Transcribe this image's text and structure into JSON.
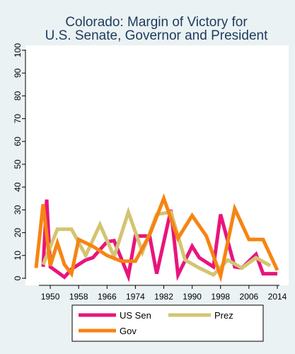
{
  "chart_data": {
    "type": "line",
    "title": "Colorado: Margin of Victory for",
    "subtitle": "U.S. Senate, Governor and President",
    "xlabel": "",
    "ylabel": "",
    "xlim": [
      1946,
      2014
    ],
    "ylim": [
      0,
      100
    ],
    "x_ticks": [
      1950,
      1958,
      1966,
      1974,
      1982,
      1990,
      1998,
      2006,
      2014
    ],
    "x_tick_labels": [
      "1950",
      "1958",
      "1966",
      "1974",
      "1982",
      "1990",
      "1998",
      "2006",
      "2014"
    ],
    "y_ticks": [
      0,
      10,
      20,
      30,
      40,
      50,
      60,
      70,
      80,
      90,
      100
    ],
    "y_tick_labels": [
      "0",
      "10",
      "20",
      "30",
      "40",
      "50",
      "60",
      "70",
      "80",
      "90",
      "100"
    ],
    "grid": false,
    "legend_position": "bottom",
    "series": [
      {
        "name": "US Sen",
        "color": "#e8157c",
        "x": [
          1948,
          1949,
          1950,
          1954,
          1956,
          1960,
          1962,
          1966,
          1968,
          1972,
          1974,
          1978,
          1980,
          1984,
          1986,
          1990,
          1992,
          1996,
          1998,
          2002,
          2004,
          2008,
          2010,
          2014
        ],
        "y": [
          5,
          34.5,
          5,
          0.5,
          4,
          8,
          9,
          16,
          16.5,
          1,
          18.5,
          18.5,
          2,
          30,
          1.5,
          14,
          9,
          5,
          28,
          5,
          4.5,
          10.5,
          2,
          2
        ]
      },
      {
        "name": "Prez",
        "color": "#d4c472",
        "x": [
          1948,
          1952,
          1956,
          1960,
          1964,
          1968,
          1972,
          1976,
          1980,
          1984,
          1988,
          1992,
          1996,
          2000,
          2004,
          2008,
          2012
        ],
        "y": [
          6,
          21.5,
          21.5,
          10,
          23.5,
          9.5,
          29,
          11.5,
          28,
          29,
          8,
          4.5,
          1.5,
          8,
          4.5,
          9,
          5.5
        ]
      },
      {
        "name": "Gov",
        "color": "#f78412",
        "x": [
          1946,
          1948,
          1950,
          1952,
          1954,
          1956,
          1958,
          1962,
          1966,
          1970,
          1974,
          1978,
          1982,
          1986,
          1990,
          1994,
          1998,
          2002,
          2006,
          2010,
          2014
        ],
        "y": [
          4.5,
          32.5,
          5.5,
          15.5,
          6,
          2,
          17,
          14,
          10,
          7.5,
          7.5,
          19,
          35,
          17.5,
          27.5,
          18.5,
          1,
          30.5,
          17,
          17,
          3.5
        ]
      }
    ]
  }
}
